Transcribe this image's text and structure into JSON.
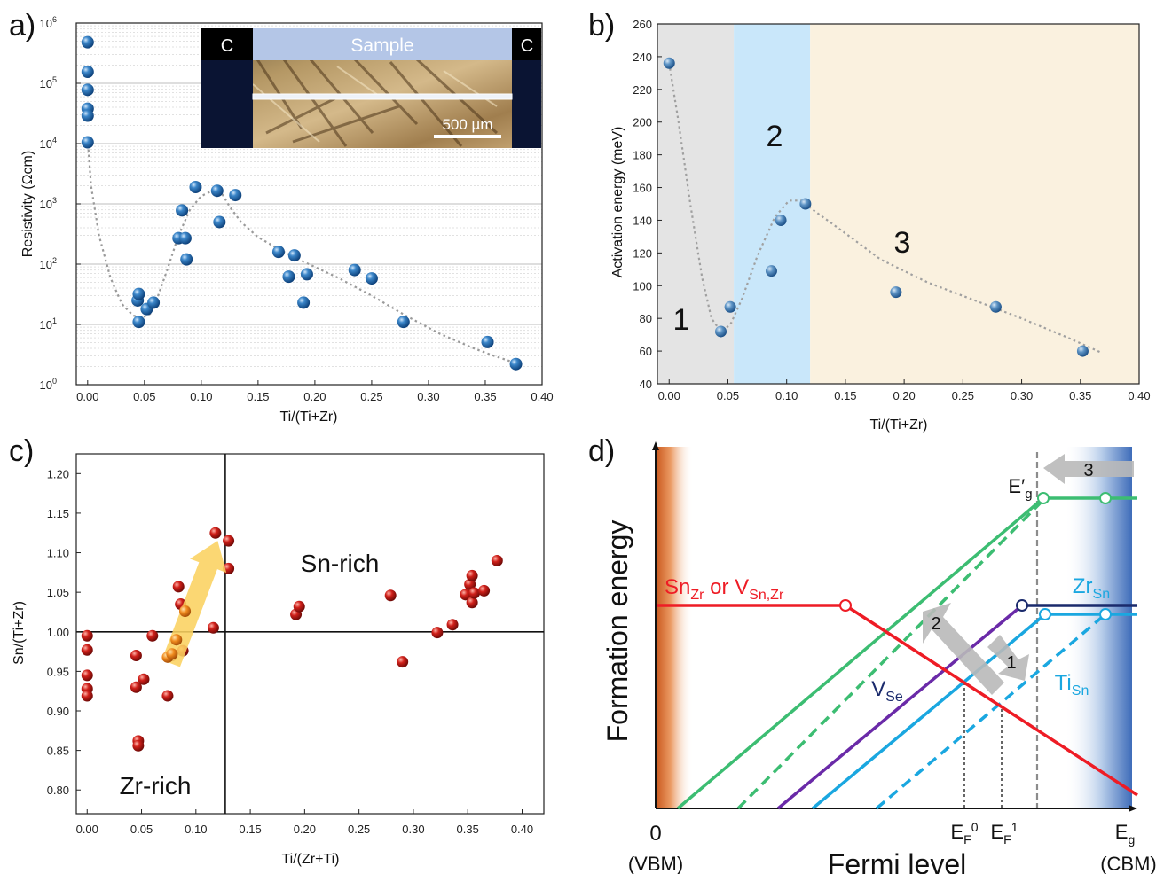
{
  "panel_labels": [
    "a)",
    "b)",
    "c)",
    "d)"
  ],
  "chart_data": [
    {
      "panel": "a)",
      "type": "scatter",
      "log_y": true,
      "xlabel": "Ti/(Ti+Zr)",
      "ylabel": "Resistivity (Ωcm)",
      "xlim": [
        -0.01,
        0.4
      ],
      "ylim": [
        1,
        1000000
      ],
      "xticks": [
        "0.00",
        "0.05",
        "0.10",
        "0.15",
        "0.20",
        "0.25",
        "0.30",
        "0.35",
        "0.40"
      ],
      "yticks": [
        "10^0",
        "10^1",
        "10^2",
        "10^3",
        "10^4",
        "10^5",
        "10^6"
      ],
      "grid": true,
      "points": [
        [
          0.0,
          480000
        ],
        [
          0.0,
          155000
        ],
        [
          0.0,
          78000
        ],
        [
          0.0,
          38000
        ],
        [
          0.0,
          29000
        ],
        [
          0.0,
          10500
        ],
        [
          0.044,
          25
        ],
        [
          0.045,
          32
        ],
        [
          0.045,
          11
        ],
        [
          0.052,
          18
        ],
        [
          0.058,
          23
        ],
        [
          0.08,
          270
        ],
        [
          0.083,
          780
        ],
        [
          0.086,
          270
        ],
        [
          0.087,
          120
        ],
        [
          0.095,
          1900
        ],
        [
          0.114,
          1650
        ],
        [
          0.116,
          500
        ],
        [
          0.13,
          1400
        ],
        [
          0.168,
          160
        ],
        [
          0.177,
          62
        ],
        [
          0.182,
          140
        ],
        [
          0.19,
          23
        ],
        [
          0.193,
          68
        ],
        [
          0.235,
          80
        ],
        [
          0.25,
          58
        ],
        [
          0.278,
          11
        ],
        [
          0.352,
          5.1
        ],
        [
          0.377,
          2.2
        ]
      ],
      "trend": [
        [
          0.0,
          12000
        ],
        [
          0.003,
          2000
        ],
        [
          0.01,
          300
        ],
        [
          0.02,
          60
        ],
        [
          0.03,
          22
        ],
        [
          0.04,
          14
        ],
        [
          0.048,
          13
        ],
        [
          0.055,
          15
        ],
        [
          0.062,
          30
        ],
        [
          0.07,
          80
        ],
        [
          0.08,
          300
        ],
        [
          0.09,
          800
        ],
        [
          0.1,
          1350
        ],
        [
          0.11,
          1650
        ],
        [
          0.118,
          1500
        ],
        [
          0.125,
          900
        ],
        [
          0.135,
          500
        ],
        [
          0.15,
          280
        ],
        [
          0.17,
          170
        ],
        [
          0.19,
          110
        ],
        [
          0.22,
          60
        ],
        [
          0.25,
          30
        ],
        [
          0.28,
          14
        ],
        [
          0.31,
          7
        ],
        [
          0.34,
          4
        ],
        [
          0.36,
          2.9
        ],
        [
          0.38,
          2.2
        ]
      ],
      "inset": {
        "left_label": "C",
        "right_label": "C",
        "band_label": "Sample",
        "scale_bar": "500 µm"
      }
    },
    {
      "panel": "b)",
      "type": "scatter",
      "xlabel": "Ti/(Ti+Zr)",
      "ylabel": "Activation energy (meV)",
      "xlim": [
        -0.01,
        0.4
      ],
      "ylim": [
        40,
        260
      ],
      "xticks": [
        "0.00",
        "0.05",
        "0.10",
        "0.15",
        "0.20",
        "0.25",
        "0.30",
        "0.35",
        "0.40"
      ],
      "yticks": [
        "40",
        "60",
        "80",
        "100",
        "120",
        "140",
        "160",
        "180",
        "200",
        "220",
        "240",
        "260"
      ],
      "regions": [
        {
          "label": "1",
          "from": -0.01,
          "to": 0.055,
          "color": "#e4e4e4"
        },
        {
          "label": "2",
          "from": 0.055,
          "to": 0.12,
          "color": "#c9e7fa"
        },
        {
          "label": "3",
          "from": 0.12,
          "to": 0.4,
          "color": "#faf1df"
        }
      ],
      "points": [
        [
          0.0,
          236
        ],
        [
          0.044,
          72
        ],
        [
          0.052,
          87
        ],
        [
          0.087,
          109
        ],
        [
          0.095,
          140
        ],
        [
          0.116,
          150
        ],
        [
          0.193,
          96
        ],
        [
          0.278,
          87
        ],
        [
          0.352,
          60
        ]
      ],
      "trend": [
        [
          0.0,
          236
        ],
        [
          0.008,
          200
        ],
        [
          0.018,
          150
        ],
        [
          0.028,
          105
        ],
        [
          0.036,
          80
        ],
        [
          0.044,
          72
        ],
        [
          0.052,
          76
        ],
        [
          0.062,
          92
        ],
        [
          0.075,
          118
        ],
        [
          0.09,
          142
        ],
        [
          0.102,
          152
        ],
        [
          0.112,
          152
        ],
        [
          0.125,
          145
        ],
        [
          0.15,
          132
        ],
        [
          0.18,
          116
        ],
        [
          0.22,
          102
        ],
        [
          0.26,
          91
        ],
        [
          0.3,
          80
        ],
        [
          0.34,
          68
        ],
        [
          0.368,
          59
        ]
      ]
    },
    {
      "panel": "c)",
      "type": "scatter",
      "xlabel": "Ti/(Zr+Ti)",
      "ylabel": "Sn/(Ti+Zr)",
      "xlim": [
        -0.01,
        0.42
      ],
      "ylim": [
        0.77,
        1.225
      ],
      "xticks": [
        "0.00",
        "0.05",
        "0.10",
        "0.15",
        "0.20",
        "0.25",
        "0.30",
        "0.35",
        "0.40"
      ],
      "yticks": [
        "0.80",
        "0.85",
        "0.90",
        "0.95",
        "1.00",
        "1.05",
        "1.10",
        "1.15",
        "1.20"
      ],
      "crosshair": {
        "x": 0.127,
        "y": 1.0
      },
      "annotations": [
        "Sn-rich",
        "Zr-rich"
      ],
      "points": [
        [
          0.0,
          0.995
        ],
        [
          0.0,
          0.977
        ],
        [
          0.0,
          0.945
        ],
        [
          0.0,
          0.928
        ],
        [
          0.0,
          0.919
        ],
        [
          0.045,
          0.97
        ],
        [
          0.045,
          0.93
        ],
        [
          0.047,
          0.862
        ],
        [
          0.047,
          0.856
        ],
        [
          0.052,
          0.94
        ],
        [
          0.06,
          0.995
        ],
        [
          0.074,
          0.919
        ],
        [
          0.078,
          0.97
        ],
        [
          0.082,
          0.99
        ],
        [
          0.084,
          1.057
        ],
        [
          0.086,
          1.035
        ],
        [
          0.088,
          0.976
        ],
        [
          0.09,
          1.027
        ],
        [
          0.116,
          1.005
        ],
        [
          0.118,
          1.125
        ],
        [
          0.13,
          1.115
        ],
        [
          0.13,
          1.08
        ],
        [
          0.192,
          1.022
        ],
        [
          0.195,
          1.032
        ],
        [
          0.279,
          1.046
        ],
        [
          0.29,
          0.962
        ],
        [
          0.322,
          0.999
        ],
        [
          0.336,
          1.009
        ],
        [
          0.348,
          1.047
        ],
        [
          0.352,
          1.06
        ],
        [
          0.354,
          1.071
        ],
        [
          0.354,
          1.037
        ],
        [
          0.356,
          1.049
        ],
        [
          0.365,
          1.052
        ],
        [
          0.377,
          1.09
        ]
      ],
      "arrow": {
        "from": [
          0.077,
          0.96
        ],
        "to": [
          0.12,
          1.115
        ],
        "color": "#fbd260"
      }
    },
    {
      "panel": "d)",
      "type": "line",
      "xlabel": "Fermi level",
      "ylabel": "Formation energy",
      "x_tick_labels": [
        "0",
        "(VBM)",
        "E_F^0",
        "E_F^1",
        "E_g",
        "(CBM)"
      ],
      "gap_marker": "E′g",
      "series": [
        {
          "label": "SnZr or VSn,Zr",
          "color": "#ee1c25"
        },
        {
          "label": "ZrSn",
          "color": "#1aa7e0"
        },
        {
          "label": "TiSn",
          "color": "#1aa7e0"
        },
        {
          "label": "VSe",
          "color": "#1a2a6c"
        }
      ],
      "arrow_labels": [
        "1",
        "2",
        "3"
      ]
    }
  ],
  "panel_d_text": {
    "sn_main": "Sn",
    "sn_sub": "Zr",
    "sn_or": " or V",
    "sn_sub2": "Sn,Zr",
    "zr_main": "Zr",
    "zr_sub": "Sn",
    "ti_main": "Ti",
    "ti_sub": "Sn",
    "v_main": "V",
    "v_sub": "Se",
    "ef0_main": "E",
    "ef0_sub": "F",
    "ef0_sup": "0",
    "ef1_main": "E",
    "ef1_sub": "F",
    "ef1_sup": "1",
    "eg_main": "E",
    "eg_sub": "g",
    "egp_main": "E′",
    "egp_sub": "g",
    "zero": "0",
    "vbm": "(VBM)",
    "cbm": "(CBM)",
    "arrow1": "1",
    "arrow2": "2",
    "arrow3": "3",
    "xlabel": "Fermi level",
    "ylabel": "Formation energy"
  },
  "panel_b_regions_text": [
    "1",
    "2",
    "3"
  ],
  "panel_c_text": {
    "snrich": "Sn-rich",
    "zrrich": "Zr-rich"
  },
  "inset_text": {
    "c_left": "C",
    "c_right": "C",
    "sample": "Sample",
    "scale": "500 µm"
  }
}
